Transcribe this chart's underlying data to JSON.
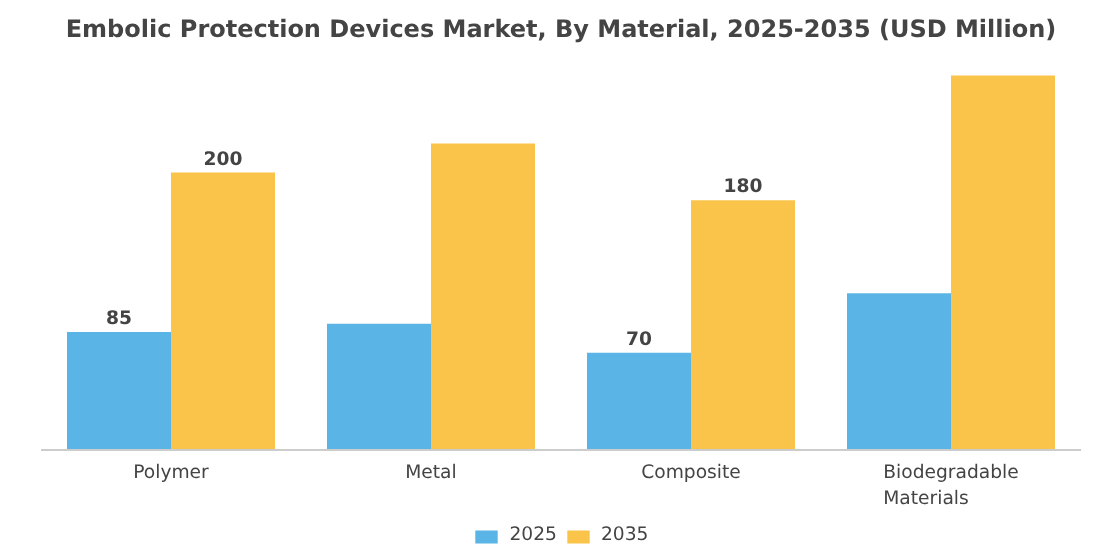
{
  "chart_data": {
    "type": "bar",
    "title": "Embolic Protection Devices Market, By Material, 2025-2035 (USD Million)",
    "categories": [
      "Polymer",
      "Metal",
      "Composite",
      "Biodegradable\nMaterials"
    ],
    "series": [
      {
        "name": "2025",
        "color": "#5ab4e5",
        "values": [
          85,
          91,
          70,
          113
        ],
        "value_labels": [
          "85",
          null,
          "70",
          null
        ]
      },
      {
        "name": "2035",
        "color": "#f9c449",
        "values": [
          200,
          221,
          180,
          270
        ],
        "value_labels": [
          "200",
          null,
          "180",
          null
        ]
      }
    ],
    "legend": "bottom"
  }
}
